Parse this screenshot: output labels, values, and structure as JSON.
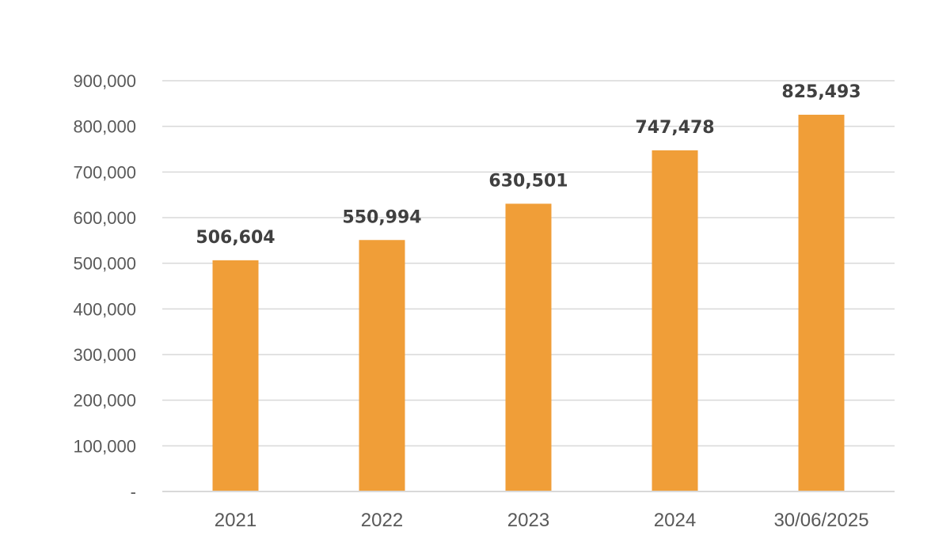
{
  "chart_data": {
    "type": "bar",
    "categories": [
      "2021",
      "2022",
      "2023",
      "2024",
      "30/06/2025"
    ],
    "values": [
      506604,
      550994,
      630501,
      747478,
      825493
    ],
    "data_labels": [
      "506,604",
      "550,994",
      "630,501",
      "747,478",
      "825,493"
    ],
    "y_ticks": [
      0,
      100000,
      200000,
      300000,
      400000,
      500000,
      600000,
      700000,
      800000,
      900000
    ],
    "y_tick_labels": [
      "-",
      "100,000",
      "200,000",
      "300,000",
      "400,000",
      "500,000",
      "600,000",
      "700,000",
      "800,000",
      "900,000"
    ],
    "ylim": [
      0,
      900000
    ],
    "grid": true,
    "legend": "none",
    "bar_color": "#F09E38"
  }
}
